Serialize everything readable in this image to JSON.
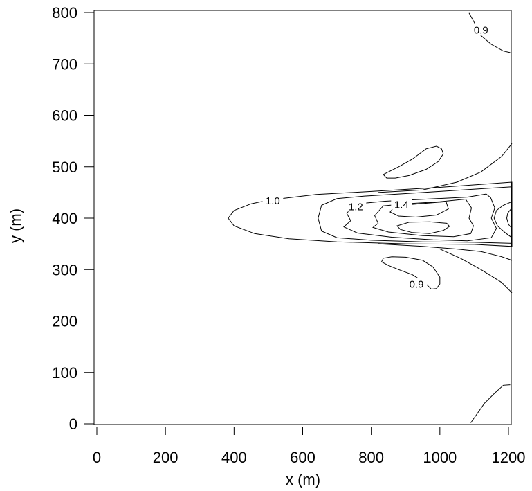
{
  "chart_data": {
    "type": "contour",
    "title": "",
    "xlabel": "x (m)",
    "ylabel": "y (m)",
    "xlim": [
      0,
      1200
    ],
    "ylim": [
      0,
      800
    ],
    "xticks": [
      "0",
      "200",
      "400",
      "600",
      "800",
      "1000",
      "1200"
    ],
    "yticks": [
      "0",
      "100",
      "200",
      "300",
      "400",
      "500",
      "600",
      "700",
      "800"
    ],
    "grid": false,
    "legend": "none",
    "contours": [
      {
        "level": "1.0",
        "closed": true,
        "points": [
          [
            1210,
            470
          ],
          [
            1000,
            460
          ],
          [
            800,
            452
          ],
          [
            640,
            446
          ],
          [
            500,
            435
          ],
          [
            450,
            428
          ],
          [
            400,
            415
          ],
          [
            383,
            400
          ],
          [
            400,
            385
          ],
          [
            460,
            370
          ],
          [
            560,
            360
          ],
          [
            700,
            354
          ],
          [
            900,
            350
          ],
          [
            1100,
            349
          ],
          [
            1210,
            345
          ]
        ]
      },
      {
        "level": "1.2",
        "closed": true,
        "points": [
          [
            1210,
            461
          ],
          [
            1140,
            458
          ],
          [
            1000,
            452
          ],
          [
            880,
            447
          ],
          [
            780,
            443
          ],
          [
            700,
            438
          ],
          [
            655,
            425
          ],
          [
            645,
            400
          ],
          [
            655,
            375
          ],
          [
            700,
            362
          ],
          [
            800,
            357
          ],
          [
            950,
            354
          ],
          [
            1100,
            353
          ],
          [
            1210,
            351
          ]
        ]
      },
      {
        "level": "",
        "closed": true,
        "points": [
          [
            1135,
            447
          ],
          [
            1080,
            441
          ],
          [
            960,
            437
          ],
          [
            840,
            433
          ],
          [
            760,
            428
          ],
          [
            728,
            410
          ],
          [
            740,
            395
          ],
          [
            720,
            383
          ],
          [
            760,
            371
          ],
          [
            860,
            363
          ],
          [
            980,
            358
          ],
          [
            1080,
            356
          ],
          [
            1150,
            362
          ],
          [
            1165,
            380
          ],
          [
            1150,
            400
          ],
          [
            1160,
            420
          ],
          [
            1148,
            440
          ]
        ]
      },
      {
        "level": "",
        "closed": true,
        "points": [
          [
            1075,
            437
          ],
          [
            1000,
            432
          ],
          [
            900,
            428
          ],
          [
            835,
            424
          ],
          [
            810,
            405
          ],
          [
            820,
            390
          ],
          [
            805,
            382
          ],
          [
            850,
            373
          ],
          [
            950,
            366
          ],
          [
            1040,
            364
          ],
          [
            1090,
            370
          ],
          [
            1098,
            385
          ],
          [
            1085,
            400
          ],
          [
            1092,
            420
          ]
        ]
      },
      {
        "level": "1.4",
        "closed": true,
        "points": [
          [
            1018,
            432
          ],
          [
            940,
            428
          ],
          [
            870,
            424
          ],
          [
            855,
            412
          ],
          [
            880,
            404
          ],
          [
            930,
            402
          ],
          [
            990,
            406
          ],
          [
            1025,
            418
          ]
        ]
      },
      {
        "level": "",
        "closed": true,
        "points": [
          [
            1020,
            390
          ],
          [
            970,
            393
          ],
          [
            910,
            392
          ],
          [
            875,
            385
          ],
          [
            885,
            378
          ],
          [
            920,
            372
          ],
          [
            970,
            370
          ],
          [
            1010,
            376
          ],
          [
            1028,
            384
          ]
        ]
      },
      {
        "level": "",
        "closed": false,
        "points": [
          [
            1210,
            432
          ],
          [
            1185,
            425
          ],
          [
            1165,
            415
          ],
          [
            1158,
            400
          ],
          [
            1168,
            385
          ],
          [
            1190,
            372
          ],
          [
            1210,
            362
          ]
        ]
      },
      {
        "level": "",
        "closed": false,
        "points": [
          [
            1210,
            420
          ],
          [
            1198,
            410
          ],
          [
            1195,
            400
          ],
          [
            1200,
            388
          ],
          [
            1210,
            380
          ]
        ]
      },
      {
        "level": "",
        "closed": false,
        "points": [
          [
            1210,
            545
          ],
          [
            1180,
            520
          ],
          [
            1120,
            490
          ],
          [
            1050,
            470
          ],
          [
            950,
            455
          ],
          [
            820,
            450
          ]
        ]
      },
      {
        "level": "",
        "closed": false,
        "points": [
          [
            820,
            350
          ],
          [
            950,
            345
          ],
          [
            1050,
            340
          ],
          [
            1120,
            335
          ],
          [
            1180,
            325
          ],
          [
            1210,
            318
          ]
        ]
      },
      {
        "level": "",
        "closed": false,
        "points": [
          [
            1210,
            255
          ],
          [
            1180,
            275
          ],
          [
            1120,
            300
          ],
          [
            1060,
            322
          ],
          [
            1000,
            340
          ]
        ]
      },
      {
        "level": "0.9",
        "closed": true,
        "points": [
          [
            835,
            485
          ],
          [
            880,
            500
          ],
          [
            920,
            515
          ],
          [
            960,
            535
          ],
          [
            990,
            540
          ],
          [
            1005,
            535
          ],
          [
            1010,
            525
          ],
          [
            995,
            510
          ],
          [
            960,
            495
          ],
          [
            910,
            483
          ],
          [
            870,
            478
          ],
          [
            845,
            478
          ]
        ]
      },
      {
        "level": "0.9",
        "closed": true,
        "points": [
          [
            830,
            315
          ],
          [
            850,
            308
          ],
          [
            880,
            300
          ],
          [
            920,
            290
          ],
          [
            955,
            275
          ],
          [
            975,
            262
          ],
          [
            990,
            263
          ],
          [
            1000,
            272
          ],
          [
            1000,
            285
          ],
          [
            980,
            305
          ],
          [
            950,
            318
          ],
          [
            900,
            324
          ],
          [
            860,
            325
          ],
          [
            835,
            322
          ]
        ]
      },
      {
        "level": "0.9",
        "closed": false,
        "points": [
          [
            1085,
            799
          ],
          [
            1105,
            775
          ],
          [
            1120,
            755
          ],
          [
            1150,
            738
          ],
          [
            1185,
            725
          ],
          [
            1205,
            722
          ]
        ]
      },
      {
        "level": "",
        "closed": false,
        "points": [
          [
            1090,
            2
          ],
          [
            1130,
            40
          ],
          [
            1160,
            60
          ],
          [
            1185,
            75
          ],
          [
            1205,
            76
          ]
        ]
      }
    ],
    "labels": [
      {
        "text": "1.0",
        "x": 513,
        "y": 432
      },
      {
        "text": "1.2",
        "x": 755,
        "y": 421
      },
      {
        "text": "1.4",
        "x": 888,
        "y": 425
      },
      {
        "text": "0.9",
        "x": 932,
        "y": 270
      },
      {
        "text": "0.9",
        "x": 1120,
        "y": 764
      }
    ]
  }
}
